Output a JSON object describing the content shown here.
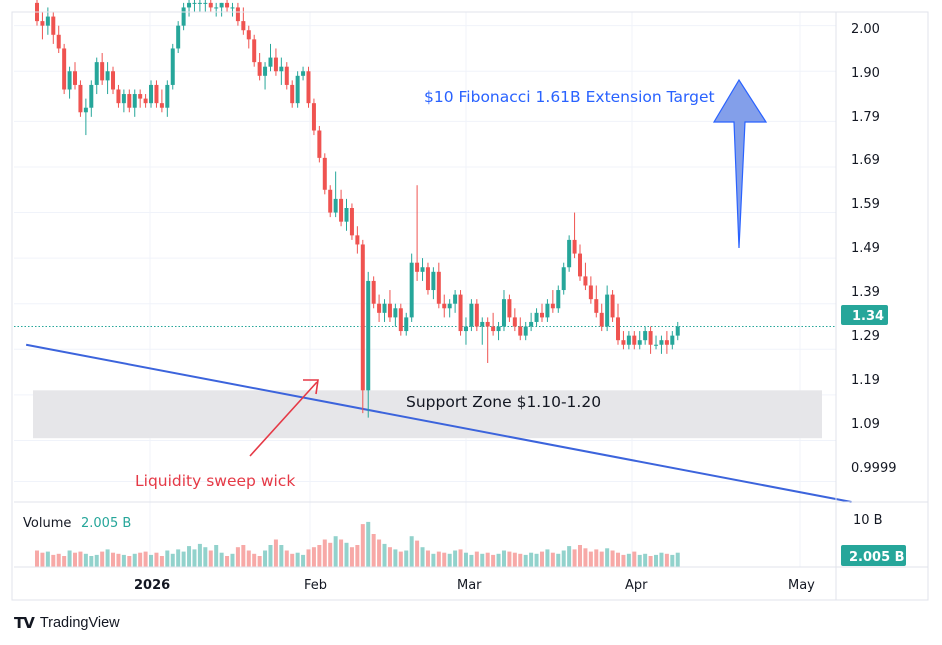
{
  "chart_data": {
    "type": "candlestick",
    "title": "",
    "y_axis": {
      "ticks": [
        "2.00",
        "1.90",
        "1.79",
        "1.69",
        "1.59",
        "1.49",
        "1.39",
        "1.29",
        "1.19",
        "1.09",
        "0.9999"
      ],
      "ylim": [
        0.955,
        2.03
      ]
    },
    "x_axis": {
      "labels": [
        {
          "text": "2026",
          "bold": true
        },
        {
          "text": "Feb",
          "bold": false
        },
        {
          "text": "Mar",
          "bold": false
        },
        {
          "text": "Apr",
          "bold": false
        },
        {
          "text": "May",
          "bold": false
        }
      ]
    },
    "last_price": {
      "label": "1.34",
      "value": 1.34,
      "color": "#26a69a"
    },
    "volume": {
      "label": "Volume",
      "value_label": "2.005 B",
      "axis_label": "10 B",
      "last_label": "2.005 B"
    },
    "candles": [
      [
        2.05,
        2.06,
        2.0,
        2.01
      ],
      [
        2.01,
        2.03,
        1.97,
        2.0
      ],
      [
        2.0,
        2.04,
        1.98,
        2.02
      ],
      [
        2.02,
        2.03,
        1.96,
        1.98
      ],
      [
        1.98,
        2.0,
        1.94,
        1.95
      ],
      [
        1.95,
        1.96,
        1.85,
        1.86
      ],
      [
        1.86,
        1.91,
        1.84,
        1.9
      ],
      [
        1.9,
        1.92,
        1.86,
        1.87
      ],
      [
        1.87,
        1.88,
        1.8,
        1.81
      ],
      [
        1.81,
        1.84,
        1.76,
        1.82
      ],
      [
        1.82,
        1.88,
        1.8,
        1.87
      ],
      [
        1.87,
        1.93,
        1.85,
        1.92
      ],
      [
        1.92,
        1.94,
        1.87,
        1.88
      ],
      [
        1.88,
        1.92,
        1.85,
        1.9
      ],
      [
        1.9,
        1.91,
        1.85,
        1.86
      ],
      [
        1.86,
        1.87,
        1.82,
        1.83
      ],
      [
        1.83,
        1.86,
        1.81,
        1.85
      ],
      [
        1.85,
        1.86,
        1.81,
        1.82
      ],
      [
        1.82,
        1.86,
        1.8,
        1.85
      ],
      [
        1.85,
        1.86,
        1.82,
        1.84
      ],
      [
        1.84,
        1.85,
        1.82,
        1.83
      ],
      [
        1.83,
        1.88,
        1.82,
        1.87
      ],
      [
        1.87,
        1.88,
        1.82,
        1.83
      ],
      [
        1.83,
        1.86,
        1.81,
        1.82
      ],
      [
        1.82,
        1.88,
        1.8,
        1.87
      ],
      [
        1.87,
        1.96,
        1.86,
        1.95
      ],
      [
        1.95,
        2.01,
        1.94,
        2.0
      ],
      [
        2.0,
        2.05,
        1.99,
        2.04
      ],
      [
        2.04,
        2.06,
        2.02,
        2.05
      ],
      [
        2.05,
        2.06,
        2.03,
        2.05
      ],
      [
        2.05,
        2.06,
        2.03,
        2.05
      ],
      [
        2.05,
        2.06,
        2.03,
        2.05
      ],
      [
        2.05,
        2.06,
        2.03,
        2.04
      ],
      [
        2.04,
        2.05,
        2.02,
        2.04
      ],
      [
        2.04,
        2.05,
        2.02,
        2.05
      ],
      [
        2.05,
        2.06,
        2.03,
        2.04
      ],
      [
        2.04,
        2.05,
        2.02,
        2.04
      ],
      [
        2.04,
        2.05,
        2.0,
        2.01
      ],
      [
        2.01,
        2.04,
        1.98,
        1.99
      ],
      [
        1.99,
        2.0,
        1.95,
        1.97
      ],
      [
        1.97,
        1.98,
        1.91,
        1.92
      ],
      [
        1.92,
        1.94,
        1.88,
        1.89
      ],
      [
        1.89,
        1.92,
        1.86,
        1.91
      ],
      [
        1.91,
        1.96,
        1.9,
        1.93
      ],
      [
        1.93,
        1.95,
        1.89,
        1.9
      ],
      [
        1.9,
        1.93,
        1.87,
        1.91
      ],
      [
        1.91,
        1.92,
        1.86,
        1.87
      ],
      [
        1.87,
        1.88,
        1.82,
        1.83
      ],
      [
        1.83,
        1.9,
        1.82,
        1.89
      ],
      [
        1.89,
        1.91,
        1.88,
        1.9
      ],
      [
        1.9,
        1.91,
        1.82,
        1.83
      ],
      [
        1.83,
        1.84,
        1.76,
        1.77
      ],
      [
        1.77,
        1.78,
        1.7,
        1.71
      ],
      [
        1.71,
        1.72,
        1.63,
        1.64
      ],
      [
        1.64,
        1.65,
        1.58,
        1.59
      ],
      [
        1.59,
        1.68,
        1.58,
        1.62
      ],
      [
        1.62,
        1.64,
        1.56,
        1.57
      ],
      [
        1.57,
        1.62,
        1.55,
        1.6
      ],
      [
        1.6,
        1.61,
        1.53,
        1.54
      ],
      [
        1.54,
        1.56,
        1.5,
        1.52
      ],
      [
        1.52,
        1.53,
        1.15,
        1.2
      ],
      [
        1.2,
        1.46,
        1.14,
        1.44
      ],
      [
        1.44,
        1.45,
        1.38,
        1.39
      ],
      [
        1.39,
        1.41,
        1.35,
        1.37
      ],
      [
        1.37,
        1.4,
        1.35,
        1.39
      ],
      [
        1.39,
        1.42,
        1.35,
        1.36
      ],
      [
        1.36,
        1.39,
        1.34,
        1.38
      ],
      [
        1.38,
        1.39,
        1.32,
        1.33
      ],
      [
        1.33,
        1.37,
        1.32,
        1.36
      ],
      [
        1.36,
        1.5,
        1.35,
        1.48
      ],
      [
        1.48,
        1.65,
        1.44,
        1.46
      ],
      [
        1.46,
        1.49,
        1.44,
        1.47
      ],
      [
        1.47,
        1.48,
        1.41,
        1.42
      ],
      [
        1.42,
        1.47,
        1.4,
        1.46
      ],
      [
        1.46,
        1.48,
        1.38,
        1.39
      ],
      [
        1.39,
        1.41,
        1.36,
        1.38
      ],
      [
        1.38,
        1.4,
        1.36,
        1.39
      ],
      [
        1.39,
        1.42,
        1.37,
        1.41
      ],
      [
        1.41,
        1.42,
        1.32,
        1.33
      ],
      [
        1.33,
        1.36,
        1.3,
        1.34
      ],
      [
        1.34,
        1.4,
        1.33,
        1.39
      ],
      [
        1.39,
        1.4,
        1.33,
        1.34
      ],
      [
        1.34,
        1.36,
        1.3,
        1.35
      ],
      [
        1.35,
        1.36,
        1.26,
        1.34
      ],
      [
        1.34,
        1.37,
        1.32,
        1.33
      ],
      [
        1.33,
        1.35,
        1.31,
        1.34
      ],
      [
        1.34,
        1.42,
        1.33,
        1.4
      ],
      [
        1.4,
        1.41,
        1.35,
        1.36
      ],
      [
        1.36,
        1.38,
        1.33,
        1.34
      ],
      [
        1.34,
        1.36,
        1.31,
        1.32
      ],
      [
        1.32,
        1.35,
        1.31,
        1.34
      ],
      [
        1.34,
        1.37,
        1.33,
        1.35
      ],
      [
        1.35,
        1.38,
        1.34,
        1.37
      ],
      [
        1.37,
        1.39,
        1.35,
        1.36
      ],
      [
        1.36,
        1.4,
        1.35,
        1.39
      ],
      [
        1.39,
        1.42,
        1.37,
        1.38
      ],
      [
        1.38,
        1.43,
        1.37,
        1.42
      ],
      [
        1.42,
        1.48,
        1.41,
        1.47
      ],
      [
        1.47,
        1.54,
        1.46,
        1.53
      ],
      [
        1.53,
        1.59,
        1.49,
        1.5
      ],
      [
        1.5,
        1.52,
        1.44,
        1.45
      ],
      [
        1.45,
        1.48,
        1.42,
        1.43
      ],
      [
        1.43,
        1.45,
        1.39,
        1.4
      ],
      [
        1.4,
        1.43,
        1.36,
        1.37
      ],
      [
        1.37,
        1.39,
        1.33,
        1.34
      ],
      [
        1.34,
        1.43,
        1.33,
        1.41
      ],
      [
        1.41,
        1.42,
        1.35,
        1.36
      ],
      [
        1.36,
        1.39,
        1.3,
        1.31
      ],
      [
        1.31,
        1.33,
        1.29,
        1.3
      ],
      [
        1.3,
        1.33,
        1.29,
        1.32
      ],
      [
        1.32,
        1.33,
        1.29,
        1.3
      ],
      [
        1.3,
        1.33,
        1.29,
        1.31
      ],
      [
        1.31,
        1.34,
        1.3,
        1.33
      ],
      [
        1.33,
        1.34,
        1.28,
        1.3
      ],
      [
        1.3,
        1.32,
        1.29,
        1.3
      ],
      [
        1.3,
        1.32,
        1.28,
        1.31
      ],
      [
        1.31,
        1.33,
        1.28,
        1.3
      ],
      [
        1.3,
        1.33,
        1.29,
        1.32
      ],
      [
        1.32,
        1.35,
        1.31,
        1.34
      ]
    ],
    "volumes": [
      0.3,
      0.26,
      0.28,
      0.22,
      0.24,
      0.2,
      0.3,
      0.26,
      0.28,
      0.24,
      0.2,
      0.22,
      0.28,
      0.32,
      0.26,
      0.24,
      0.22,
      0.2,
      0.24,
      0.26,
      0.28,
      0.22,
      0.26,
      0.2,
      0.3,
      0.24,
      0.32,
      0.28,
      0.38,
      0.32,
      0.42,
      0.36,
      0.3,
      0.4,
      0.26,
      0.2,
      0.24,
      0.36,
      0.4,
      0.3,
      0.24,
      0.2,
      0.3,
      0.4,
      0.5,
      0.4,
      0.3,
      0.24,
      0.26,
      0.22,
      0.32,
      0.36,
      0.4,
      0.5,
      0.44,
      0.56,
      0.5,
      0.44,
      0.36,
      0.4,
      0.78,
      0.82,
      0.6,
      0.5,
      0.42,
      0.36,
      0.32,
      0.28,
      0.3,
      0.56,
      0.48,
      0.36,
      0.3,
      0.24,
      0.28,
      0.26,
      0.24,
      0.3,
      0.32,
      0.26,
      0.22,
      0.28,
      0.24,
      0.26,
      0.22,
      0.24,
      0.3,
      0.28,
      0.26,
      0.24,
      0.22,
      0.26,
      0.24,
      0.28,
      0.32,
      0.26,
      0.24,
      0.3,
      0.38,
      0.32,
      0.4,
      0.34,
      0.28,
      0.32,
      0.28,
      0.34,
      0.3,
      0.26,
      0.22,
      0.24,
      0.28,
      0.22,
      0.24,
      0.2,
      0.22,
      0.26,
      0.24,
      0.22,
      0.26
    ],
    "support_zone": {
      "label": "Support Zone $1.10-1.20",
      "low": 1.095,
      "high": 1.2
    },
    "trendline": {
      "from_index": -2,
      "from_price": 1.3,
      "to_index": 150,
      "to_price": 0.955
    },
    "annotations": [
      {
        "text": "$10 Fibonacci 1.61B Extension Target",
        "color": "#2962ff"
      },
      {
        "text": "Liquidity sweep wick",
        "color": "#e53946"
      }
    ],
    "colors": {
      "up": "#26a69a",
      "down": "#ef5350",
      "trendline": "#3c64dc",
      "support_fill": "#e6e6e9",
      "arrow_fill": "#7595e8"
    }
  },
  "branding": {
    "logo_mark": "TV",
    "logo_text": "TradingView"
  }
}
